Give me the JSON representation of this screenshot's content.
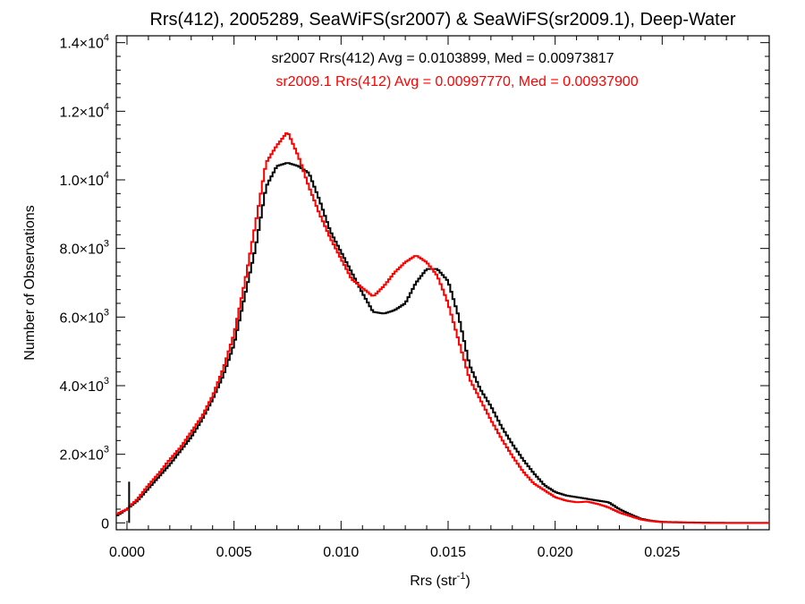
{
  "chart_data": {
    "type": "histogram",
    "title": "Rrs(412), 2005289, SeaWiFS(sr2007) & SeaWiFS(sr2009.1), Deep-Water",
    "xlabel_base": "Rrs (str",
    "xlabel_sup": "-1",
    "xlabel_close": ")",
    "ylabel": "Number of Observations",
    "xlim": [
      -0.0005,
      0.03
    ],
    "ylim": [
      -200,
      14200
    ],
    "x_ticks": [
      {
        "value": 0.0,
        "label": "0.000"
      },
      {
        "value": 0.005,
        "label": "0.005"
      },
      {
        "value": 0.01,
        "label": "0.010"
      },
      {
        "value": 0.015,
        "label": "0.015"
      },
      {
        "value": 0.02,
        "label": "0.020"
      },
      {
        "value": 0.025,
        "label": "0.025"
      }
    ],
    "y_ticks": [
      {
        "value": 0,
        "mant": "0",
        "exp": ""
      },
      {
        "value": 2000,
        "mant": "2.0×10",
        "exp": "3"
      },
      {
        "value": 4000,
        "mant": "4.0×10",
        "exp": "3"
      },
      {
        "value": 6000,
        "mant": "6.0×10",
        "exp": "3"
      },
      {
        "value": 8000,
        "mant": "8.0×10",
        "exp": "3"
      },
      {
        "value": 10000,
        "mant": "1.0×10",
        "exp": "4"
      },
      {
        "value": 12000,
        "mant": "1.2×10",
        "exp": "4"
      },
      {
        "value": 14000,
        "mant": "1.4×10",
        "exp": "4"
      }
    ],
    "annotations": [
      {
        "text": "sr2007 Rrs(412) Avg = 0.0103899, Med = 0.00973817",
        "color": "#000000"
      },
      {
        "text": "sr2009.1 Rrs(412) Avg = 0.00997770, Med = 0.00937900",
        "color": "#ff0000"
      }
    ],
    "series": [
      {
        "color": "#000000",
        "points": [
          [
            -0.0005,
            200
          ],
          [
            0.0,
            400
          ],
          [
            0.0005,
            650
          ],
          [
            0.001,
            1000
          ],
          [
            0.0015,
            1350
          ],
          [
            0.002,
            1700
          ],
          [
            0.0025,
            2100
          ],
          [
            0.003,
            2500
          ],
          [
            0.0035,
            3000
          ],
          [
            0.004,
            3600
          ],
          [
            0.0045,
            4300
          ],
          [
            0.005,
            5200
          ],
          [
            0.0055,
            6600
          ],
          [
            0.006,
            8000
          ],
          [
            0.0065,
            9800
          ],
          [
            0.007,
            10400
          ],
          [
            0.0075,
            10500
          ],
          [
            0.008,
            10400
          ],
          [
            0.0085,
            10200
          ],
          [
            0.009,
            9400
          ],
          [
            0.0095,
            8500
          ],
          [
            0.01,
            7900
          ],
          [
            0.0105,
            7300
          ],
          [
            0.011,
            6700
          ],
          [
            0.0115,
            6150
          ],
          [
            0.012,
            6100
          ],
          [
            0.0125,
            6200
          ],
          [
            0.013,
            6400
          ],
          [
            0.0135,
            7000
          ],
          [
            0.014,
            7400
          ],
          [
            0.0145,
            7400
          ],
          [
            0.015,
            7050
          ],
          [
            0.0155,
            6000
          ],
          [
            0.016,
            4600
          ],
          [
            0.0165,
            3900
          ],
          [
            0.017,
            3400
          ],
          [
            0.0175,
            2800
          ],
          [
            0.018,
            2300
          ],
          [
            0.0185,
            1850
          ],
          [
            0.019,
            1450
          ],
          [
            0.0195,
            1100
          ],
          [
            0.02,
            900
          ],
          [
            0.0205,
            800
          ],
          [
            0.021,
            750
          ],
          [
            0.0215,
            700
          ],
          [
            0.022,
            650
          ],
          [
            0.0225,
            600
          ],
          [
            0.023,
            400
          ],
          [
            0.0235,
            250
          ],
          [
            0.024,
            120
          ],
          [
            0.0245,
            60
          ],
          [
            0.025,
            30
          ],
          [
            0.026,
            15
          ],
          [
            0.027,
            5
          ],
          [
            0.028,
            0
          ],
          [
            0.03,
            0
          ]
        ]
      },
      {
        "color": "#ff0000",
        "points": [
          [
            -0.0005,
            250
          ],
          [
            0.0,
            400
          ],
          [
            0.0005,
            700
          ],
          [
            0.001,
            1100
          ],
          [
            0.0015,
            1450
          ],
          [
            0.002,
            1850
          ],
          [
            0.0025,
            2200
          ],
          [
            0.003,
            2650
          ],
          [
            0.0035,
            3100
          ],
          [
            0.004,
            3700
          ],
          [
            0.0045,
            4500
          ],
          [
            0.005,
            5500
          ],
          [
            0.0055,
            7000
          ],
          [
            0.006,
            8700
          ],
          [
            0.0065,
            10500
          ],
          [
            0.007,
            11000
          ],
          [
            0.0075,
            11400
          ],
          [
            0.008,
            10700
          ],
          [
            0.0085,
            9800
          ],
          [
            0.009,
            9000
          ],
          [
            0.0095,
            8300
          ],
          [
            0.01,
            7700
          ],
          [
            0.0105,
            7100
          ],
          [
            0.011,
            6850
          ],
          [
            0.0115,
            6600
          ],
          [
            0.012,
            6900
          ],
          [
            0.0125,
            7300
          ],
          [
            0.013,
            7600
          ],
          [
            0.0135,
            7800
          ],
          [
            0.014,
            7600
          ],
          [
            0.0145,
            7200
          ],
          [
            0.015,
            6400
          ],
          [
            0.0155,
            5300
          ],
          [
            0.016,
            4200
          ],
          [
            0.0165,
            3600
          ],
          [
            0.017,
            3000
          ],
          [
            0.0175,
            2450
          ],
          [
            0.018,
            1950
          ],
          [
            0.0185,
            1500
          ],
          [
            0.019,
            1150
          ],
          [
            0.0195,
            950
          ],
          [
            0.02,
            750
          ],
          [
            0.0205,
            650
          ],
          [
            0.021,
            600
          ],
          [
            0.0215,
            620
          ],
          [
            0.022,
            550
          ],
          [
            0.0225,
            450
          ],
          [
            0.023,
            300
          ],
          [
            0.0235,
            200
          ],
          [
            0.024,
            100
          ],
          [
            0.0245,
            50
          ],
          [
            0.025,
            20
          ],
          [
            0.026,
            8
          ],
          [
            0.027,
            0
          ],
          [
            0.03,
            0
          ]
        ]
      }
    ]
  }
}
